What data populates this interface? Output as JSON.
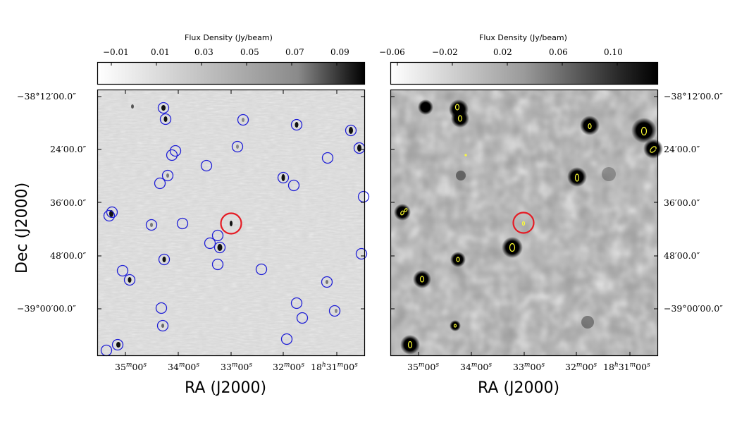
{
  "panels": [
    {
      "id": "left",
      "colorbar": {
        "title": "Flux Density (Jy/beam)",
        "ticks": [
          "−0.01",
          "0.01",
          "0.03",
          "0.05",
          "0.07",
          "0.09"
        ]
      },
      "ra_ticks": [
        {
          "h": "",
          "m": "35",
          "s": "00"
        },
        {
          "h": "",
          "m": "34",
          "s": "00"
        },
        {
          "h": "",
          "m": "33",
          "s": "00"
        },
        {
          "h": "",
          "m": "32",
          "s": "00"
        },
        {
          "h": "18",
          "m": "31",
          "s": "00"
        }
      ],
      "xlabel": "RA (J2000)",
      "ylabel": "Dec (J2000)",
      "dec_ticks": [
        "−38°12′00.0″",
        "24′00.0″",
        "36′00.0″",
        "48′00.0″",
        "−39°00′00.0″"
      ],
      "marker_colors": {
        "catalog": "#1f1fd6",
        "target": "#e51b24"
      }
    },
    {
      "id": "right",
      "colorbar": {
        "title": "Flux Density (Jy/beam)",
        "ticks": [
          "−0.06",
          "−0.02",
          "0.02",
          "0.06",
          "0.10"
        ]
      },
      "ra_ticks": [
        {
          "h": "",
          "m": "35",
          "s": "00"
        },
        {
          "h": "",
          "m": "34",
          "s": "00"
        },
        {
          "h": "",
          "m": "33",
          "s": "00"
        },
        {
          "h": "",
          "m": "32",
          "s": "00"
        },
        {
          "h": "18",
          "m": "31",
          "s": "00"
        }
      ],
      "xlabel": "RA (J2000)",
      "dec_ticks": [
        "−38°12′00.0″",
        "24′00.0″",
        "36′00.0″",
        "48′00.0″",
        "−39°00′00.0″"
      ],
      "marker_colors": {
        "ellipse": "#ffff33",
        "target": "#e51b24"
      }
    }
  ]
}
